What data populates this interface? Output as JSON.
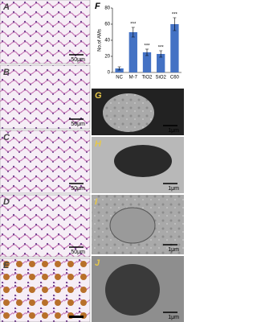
{
  "panels": [
    {
      "label": "A",
      "scale": "50μm"
    },
    {
      "label": "B",
      "scale": "50μm"
    },
    {
      "label": "C",
      "scale": "50μm"
    },
    {
      "label": "D",
      "scale": "50μm"
    },
    {
      "label": "E"
    },
    {
      "label": "G",
      "scale": "1μm"
    },
    {
      "label": "H",
      "scale": "1μm"
    },
    {
      "label": "I",
      "scale": "1μm"
    },
    {
      "label": "J",
      "scale": "1μm"
    }
  ],
  "chart_data": {
    "type": "bar",
    "panel_label": "F",
    "y_label": "No.of AMs",
    "categories": [
      "NC",
      "M-7",
      "TiO2",
      "SiO2",
      "C60"
    ],
    "values": [
      5,
      50,
      25,
      23,
      60
    ],
    "errors": [
      2,
      6,
      4,
      4,
      8
    ],
    "significance": [
      null,
      "***",
      "***",
      "***",
      "***"
    ],
    "color": "#4472c4",
    "ylim": [
      0,
      80
    ],
    "yticks": [
      0,
      20,
      40,
      60,
      80
    ]
  }
}
